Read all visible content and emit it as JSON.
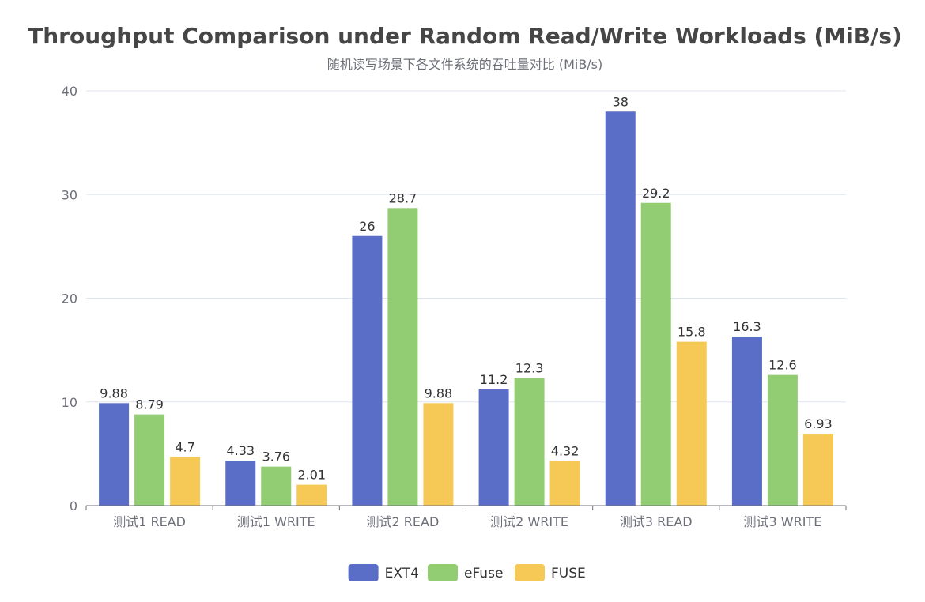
{
  "chart_data": {
    "type": "bar",
    "title": "Throughput Comparison under Random Read/Write Workloads (MiB/s)",
    "subtitle": "随机读写场景下各文件系统的吞吐量对比 (MiB/s)",
    "categories": [
      "测试1 READ",
      "测试1 WRITE",
      "测试2 READ",
      "测试2 WRITE",
      "测试3 READ",
      "测试3 WRITE"
    ],
    "series": [
      {
        "name": "EXT4",
        "color": "#5b6ec7",
        "values": [
          9.88,
          4.33,
          26,
          11.2,
          38,
          16.3
        ],
        "labels": [
          "9.88",
          "4.33",
          "26",
          "11.2",
          "38",
          "16.3"
        ]
      },
      {
        "name": "eFuse",
        "color": "#93cd73",
        "values": [
          8.79,
          3.76,
          28.7,
          12.3,
          29.2,
          12.6
        ],
        "labels": [
          "8.79",
          "3.76",
          "28.7",
          "12.3",
          "29.2",
          "12.6"
        ]
      },
      {
        "name": "FUSE",
        "color": "#f6c957",
        "values": [
          4.7,
          2.01,
          9.88,
          4.32,
          15.8,
          6.93
        ],
        "labels": [
          "4.7",
          "2.01",
          "9.88",
          "4.32",
          "15.8",
          "6.93"
        ]
      }
    ],
    "ylim": [
      0,
      40
    ],
    "yticks": [
      "0",
      "10",
      "20",
      "30",
      "40"
    ],
    "grid": true,
    "legend_position": "bottom-center"
  }
}
